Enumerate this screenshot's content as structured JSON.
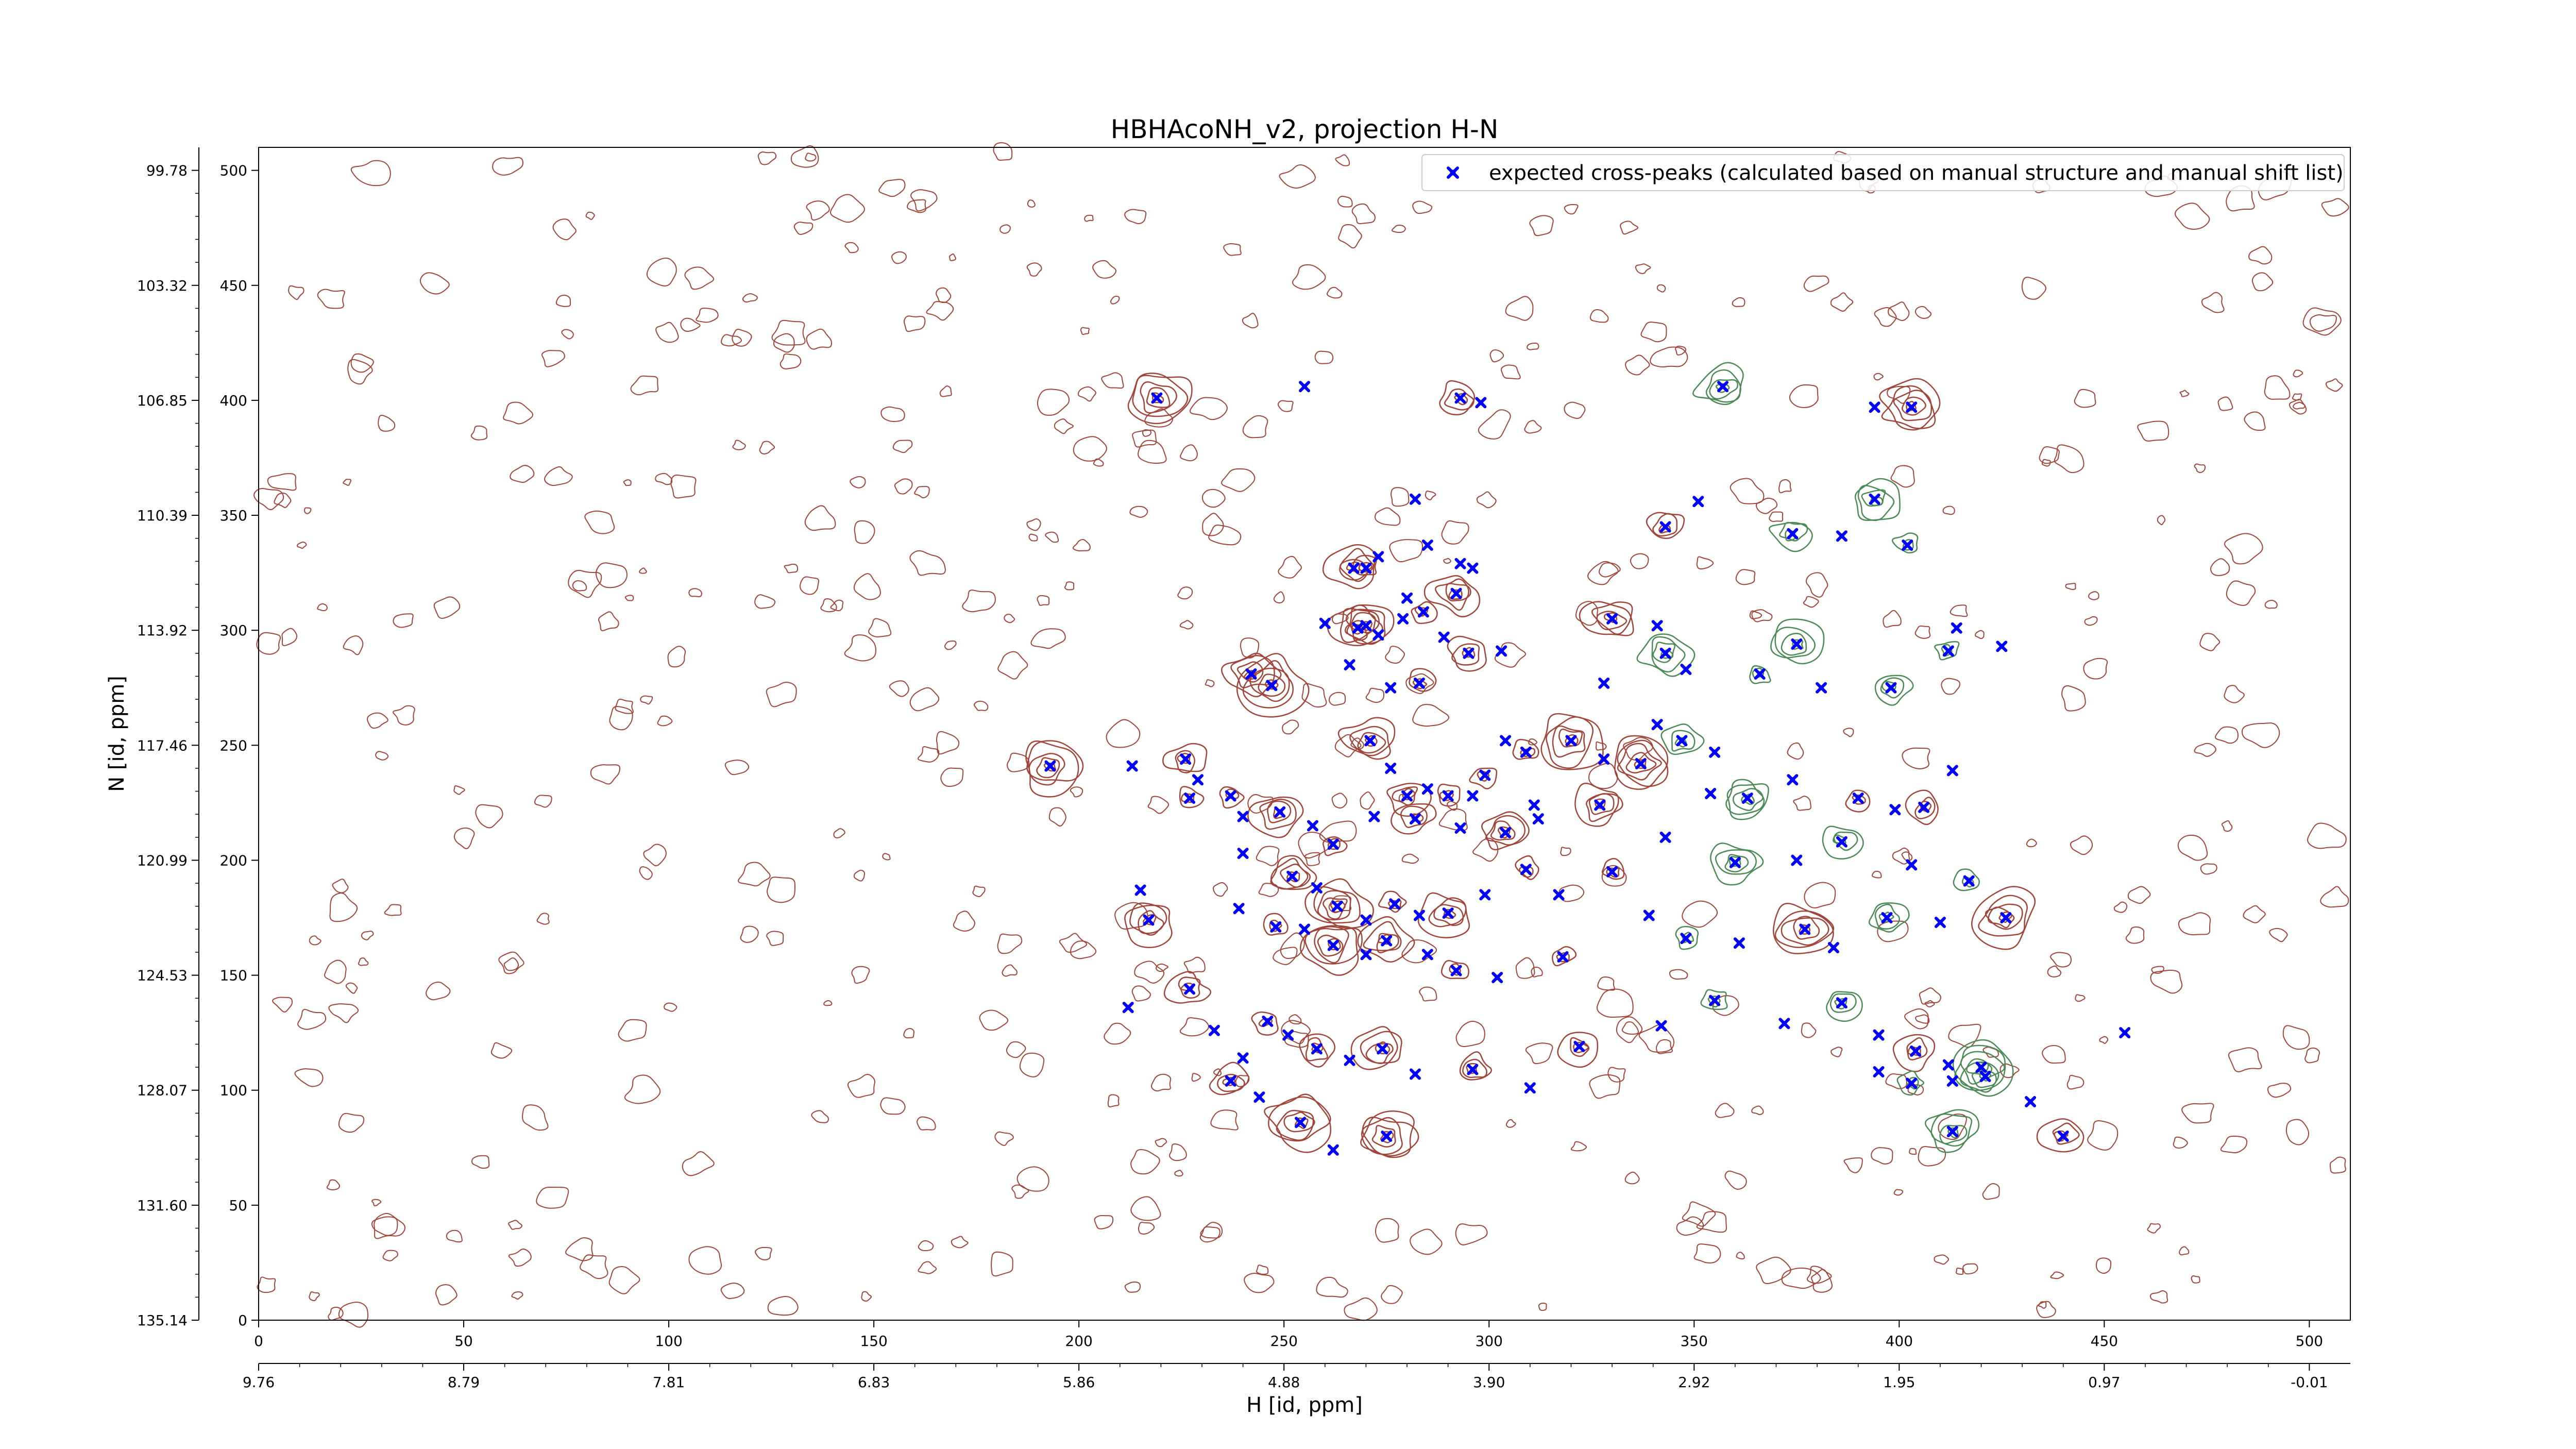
{
  "chart_data": {
    "type": "scatter",
    "title": "HBHAcoNH_v2, projection H-N",
    "xlabel": "H [id, ppm]",
    "ylabel": "N [id, ppm]",
    "x_index_ticks": [
      "0",
      "50",
      "100",
      "150",
      "200",
      "250",
      "300",
      "350",
      "400",
      "450",
      "500"
    ],
    "x_ppm_ticks": [
      "9.76",
      "8.79",
      "7.81",
      "6.83",
      "5.86",
      "4.88",
      "3.90",
      "2.92",
      "1.95",
      "0.97",
      "-0.01"
    ],
    "y_index_ticks": [
      "0",
      "50",
      "100",
      "150",
      "200",
      "250",
      "300",
      "350",
      "400",
      "450",
      "500"
    ],
    "y_ppm_ticks": [
      "135.14",
      "131.60",
      "128.07",
      "124.53",
      "120.99",
      "117.46",
      "113.92",
      "110.39",
      "106.85",
      "103.32",
      "99.78"
    ],
    "xlim": [
      0,
      510
    ],
    "ylim": [
      0,
      510
    ],
    "legend": {
      "position": "top-right",
      "entries": [
        "expected cross-peaks (calculated based on manual structure and manual shift list)"
      ]
    },
    "series": [
      {
        "name": "expected cross-peaks (calculated based on manual structure and manual shift list)",
        "color": "#0000ff",
        "marker": "x",
        "points": [
          [
            219,
            401
          ],
          [
            255,
            406
          ],
          [
            293,
            401
          ],
          [
            298,
            399
          ],
          [
            357,
            406
          ],
          [
            394,
            397
          ],
          [
            403,
            397
          ],
          [
            282,
            357
          ],
          [
            394,
            357
          ],
          [
            285,
            337
          ],
          [
            270,
            327
          ],
          [
            293,
            329
          ],
          [
            343,
            345
          ],
          [
            351,
            356
          ],
          [
            374,
            342
          ],
          [
            386,
            341
          ],
          [
            402,
            337
          ],
          [
            273,
            332
          ],
          [
            267,
            327
          ],
          [
            296,
            327
          ],
          [
            292,
            316
          ],
          [
            280,
            314
          ],
          [
            284,
            308
          ],
          [
            279,
            305
          ],
          [
            270,
            302
          ],
          [
            289,
            297
          ],
          [
            295,
            290
          ],
          [
            303,
            291
          ],
          [
            330,
            305
          ],
          [
            341,
            302
          ],
          [
            375,
            294
          ],
          [
            260,
            303
          ],
          [
            268,
            301
          ],
          [
            273,
            298
          ],
          [
            242,
            281
          ],
          [
            266,
            285
          ],
          [
            247,
            276
          ],
          [
            276,
            275
          ],
          [
            283,
            277
          ],
          [
            328,
            277
          ],
          [
            343,
            290
          ],
          [
            348,
            283
          ],
          [
            366,
            281
          ],
          [
            381,
            275
          ],
          [
            398,
            275
          ],
          [
            414,
            301
          ],
          [
            412,
            291
          ],
          [
            425,
            293
          ],
          [
            271,
            252
          ],
          [
            276,
            240
          ],
          [
            280,
            228
          ],
          [
            285,
            231
          ],
          [
            290,
            228
          ],
          [
            296,
            228
          ],
          [
            299,
            237
          ],
          [
            304,
            252
          ],
          [
            309,
            247
          ],
          [
            311,
            224
          ],
          [
            320,
            252
          ],
          [
            328,
            244
          ],
          [
            337,
            242
          ],
          [
            341,
            259
          ],
          [
            347,
            252
          ],
          [
            355,
            247
          ],
          [
            226,
            244
          ],
          [
            229,
            235
          ],
          [
            237,
            228
          ],
          [
            240,
            219
          ],
          [
            249,
            221
          ],
          [
            257,
            215
          ],
          [
            262,
            207
          ],
          [
            272,
            219
          ],
          [
            282,
            218
          ],
          [
            293,
            214
          ],
          [
            304,
            212
          ],
          [
            312,
            218
          ],
          [
            327,
            224
          ],
          [
            354,
            229
          ],
          [
            363,
            227
          ],
          [
            374,
            235
          ],
          [
            390,
            227
          ],
          [
            399,
            222
          ],
          [
            406,
            223
          ],
          [
            413,
            239
          ],
          [
            193,
            241
          ],
          [
            213,
            241
          ],
          [
            227,
            227
          ],
          [
            240,
            203
          ],
          [
            252,
            193
          ],
          [
            258,
            188
          ],
          [
            263,
            180
          ],
          [
            270,
            174
          ],
          [
            277,
            181
          ],
          [
            283,
            176
          ],
          [
            290,
            177
          ],
          [
            299,
            185
          ],
          [
            309,
            196
          ],
          [
            317,
            185
          ],
          [
            330,
            195
          ],
          [
            343,
            210
          ],
          [
            360,
            199
          ],
          [
            375,
            200
          ],
          [
            386,
            208
          ],
          [
            403,
            198
          ],
          [
            417,
            191
          ],
          [
            215,
            187
          ],
          [
            217,
            174
          ],
          [
            239,
            179
          ],
          [
            248,
            171
          ],
          [
            255,
            170
          ],
          [
            262,
            163
          ],
          [
            270,
            159
          ],
          [
            275,
            165
          ],
          [
            285,
            159
          ],
          [
            292,
            152
          ],
          [
            302,
            149
          ],
          [
            318,
            158
          ],
          [
            339,
            176
          ],
          [
            348,
            166
          ],
          [
            361,
            164
          ],
          [
            377,
            170
          ],
          [
            384,
            162
          ],
          [
            397,
            175
          ],
          [
            410,
            173
          ],
          [
            426,
            175
          ],
          [
            212,
            136
          ],
          [
            227,
            144
          ],
          [
            233,
            126
          ],
          [
            246,
            130
          ],
          [
            251,
            124
          ],
          [
            258,
            118
          ],
          [
            266,
            113
          ],
          [
            274,
            118
          ],
          [
            282,
            107
          ],
          [
            296,
            109
          ],
          [
            310,
            101
          ],
          [
            322,
            119
          ],
          [
            342,
            128
          ],
          [
            355,
            139
          ],
          [
            372,
            129
          ],
          [
            386,
            138
          ],
          [
            395,
            124
          ],
          [
            404,
            117
          ],
          [
            412,
            111
          ],
          [
            421,
            106
          ],
          [
            240,
            114
          ],
          [
            237,
            104
          ],
          [
            244,
            97
          ],
          [
            254,
            86
          ],
          [
            262,
            74
          ],
          [
            275,
            80
          ],
          [
            395,
            108
          ],
          [
            403,
            103
          ],
          [
            413,
            104
          ],
          [
            420,
            110
          ],
          [
            432,
            95
          ],
          [
            440,
            80
          ],
          [
            455,
            125
          ],
          [
            413,
            82
          ]
        ]
      }
    ]
  }
}
